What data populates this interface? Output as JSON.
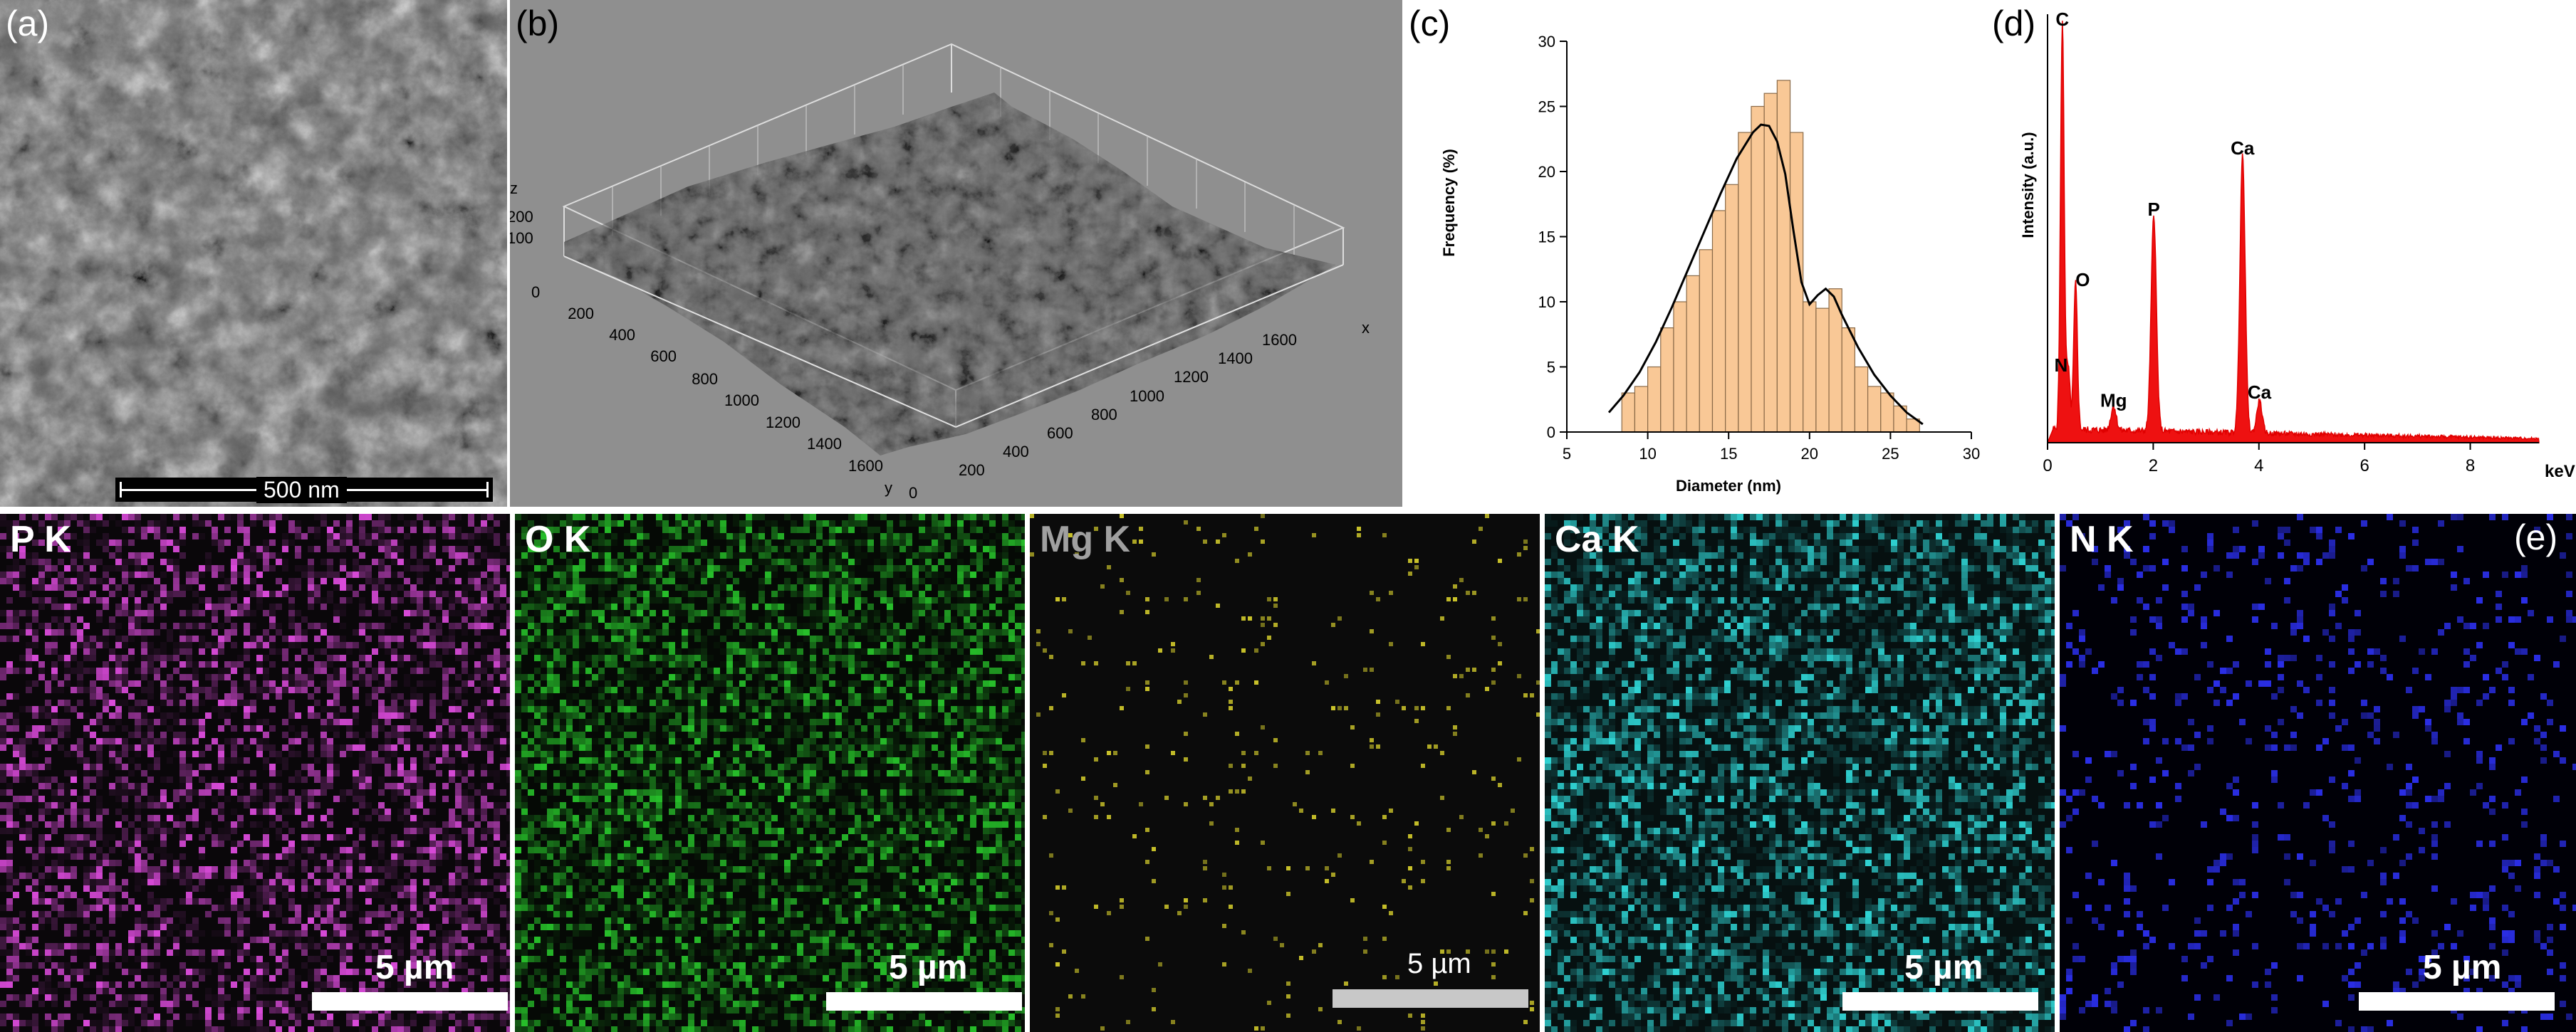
{
  "panel_a": {
    "label": "(a)",
    "scale_text": "500 nm"
  },
  "panel_b": {
    "label": "(b)",
    "axis_z_title": "z",
    "axis_z_ticks": [
      "200",
      "100",
      "0"
    ],
    "axis_x_title": "x",
    "axis_x_ticks": [
      "200",
      "400",
      "600",
      "800",
      "1000",
      "1200",
      "1400",
      "1600"
    ],
    "axis_y_title": "y",
    "axis_y_ticks": [
      "0",
      "200",
      "400",
      "600",
      "800",
      "1000",
      "1200",
      "1400",
      "1600"
    ]
  },
  "panel_c": {
    "label": "(c)"
  },
  "panel_d": {
    "label": "(d)"
  },
  "panel_e": {
    "label": "(e)"
  },
  "maps": [
    {
      "label": "P K",
      "scale_text": "5 µm",
      "color": "#d94ad9"
    },
    {
      "label": "O K",
      "scale_text": "5 µm",
      "color": "#27c02a"
    },
    {
      "label": "Mg K",
      "scale_text": "5 µm",
      "color": "#c9c22a"
    },
    {
      "label": "Ca K",
      "scale_text": "5 µm",
      "color": "#2fd2d2"
    },
    {
      "label": "N K",
      "scale_text": "5 µm",
      "color": "#2a2ee6"
    }
  ],
  "chart_data": [
    {
      "type": "bar",
      "title": "",
      "xlabel": "Diameter (nm)",
      "ylabel": "Frequency (%)",
      "xlim": [
        5,
        30
      ],
      "ylim": [
        0,
        30
      ],
      "x_ticks": [
        5,
        10,
        15,
        20,
        25,
        30
      ],
      "y_ticks": [
        0,
        5,
        10,
        15,
        20,
        25,
        30
      ],
      "bin_width": 0.8,
      "bins": [
        {
          "x": 8.8,
          "value": 3
        },
        {
          "x": 9.6,
          "value": 3.5
        },
        {
          "x": 10.4,
          "value": 5
        },
        {
          "x": 11.2,
          "value": 8
        },
        {
          "x": 12.0,
          "value": 10
        },
        {
          "x": 12.8,
          "value": 12
        },
        {
          "x": 13.6,
          "value": 14
        },
        {
          "x": 14.4,
          "value": 17
        },
        {
          "x": 15.2,
          "value": 19
        },
        {
          "x": 16.0,
          "value": 23
        },
        {
          "x": 16.8,
          "value": 25
        },
        {
          "x": 17.6,
          "value": 26
        },
        {
          "x": 18.4,
          "value": 27
        },
        {
          "x": 19.2,
          "value": 23
        },
        {
          "x": 20.0,
          "value": 10
        },
        {
          "x": 20.8,
          "value": 9.5
        },
        {
          "x": 21.6,
          "value": 11
        },
        {
          "x": 22.4,
          "value": 8
        },
        {
          "x": 23.2,
          "value": 5
        },
        {
          "x": 24.0,
          "value": 3.5
        },
        {
          "x": 24.8,
          "value": 3
        },
        {
          "x": 25.6,
          "value": 2
        },
        {
          "x": 26.4,
          "value": 1
        }
      ],
      "fit_curve": {
        "x": [
          7.6,
          8.5,
          9.5,
          10.5,
          11.5,
          12.5,
          13.5,
          14.5,
          15.5,
          16.5,
          17.0,
          17.5,
          18.0,
          18.5,
          19.0,
          19.5,
          20.0,
          20.5,
          21.0,
          21.5,
          22.0,
          23.0,
          24.0,
          25.0,
          26.0,
          27.0
        ],
        "y": [
          1.5,
          2.8,
          4.6,
          6.9,
          9.6,
          12.5,
          15.4,
          18.3,
          21.0,
          23.0,
          23.6,
          23.5,
          22.3,
          19.8,
          15.5,
          11.5,
          9.8,
          10.5,
          11.0,
          10.4,
          9.0,
          6.5,
          4.4,
          2.8,
          1.5,
          0.6
        ]
      }
    },
    {
      "type": "line",
      "title": "",
      "xlabel": "keV",
      "ylabel": "Intensity (a.u.)",
      "xlim": [
        0,
        9.3
      ],
      "x_ticks": [
        0,
        2,
        4,
        6,
        8
      ],
      "peaks": [
        {
          "label": "C",
          "x": 0.28,
          "value": 1.0
        },
        {
          "label": "N",
          "x": 0.39,
          "value": 0.15
        },
        {
          "label": "O",
          "x": 0.53,
          "value": 0.36
        },
        {
          "label": "Mg",
          "x": 1.25,
          "value": 0.06
        },
        {
          "label": "P",
          "x": 2.01,
          "value": 0.53
        },
        {
          "label": "Ca",
          "x": 3.69,
          "value": 0.68
        },
        {
          "label": "Ca",
          "x": 4.01,
          "value": 0.08
        }
      ],
      "baseline": 0.02
    }
  ]
}
